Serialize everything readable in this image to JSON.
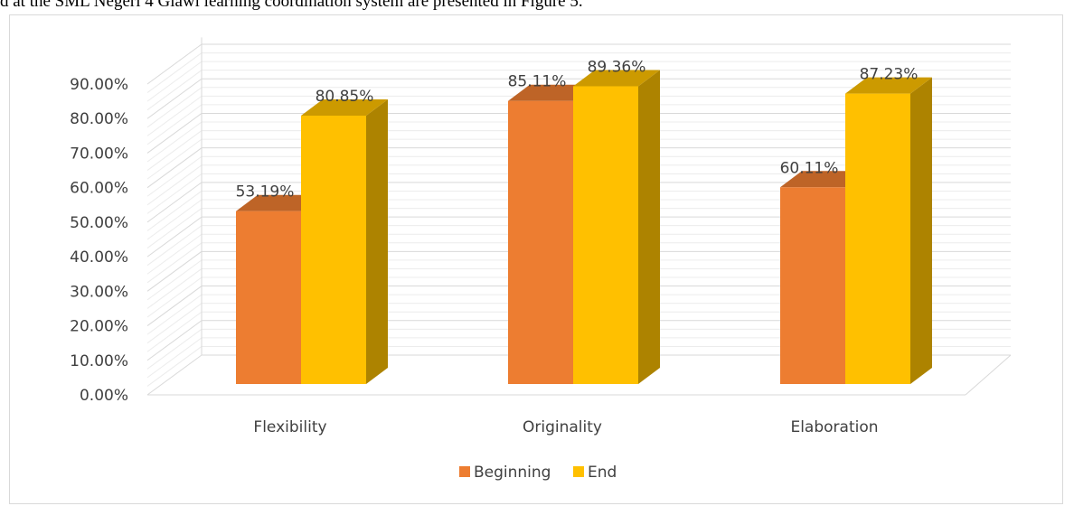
{
  "caption": "d at the SML Negeri 4 Giawi learning coordination system are presented in Figure 5.",
  "chart_data": {
    "type": "bar",
    "categories": [
      "Flexibility",
      "Originality",
      "Elaboration"
    ],
    "series": [
      {
        "name": "Beginning",
        "values": [
          53.19,
          85.11,
          60.11
        ],
        "labels": [
          "53.19%",
          "85.11%",
          "60.11%"
        ],
        "color": "#ED7D31"
      },
      {
        "name": "End",
        "values": [
          80.85,
          89.36,
          87.23
        ],
        "labels": [
          "80.85%",
          "89.36%",
          "87.23%"
        ],
        "color": "#FFC000"
      }
    ],
    "y_ticks": [
      "0.00%",
      "10.00%",
      "20.00%",
      "30.00%",
      "40.00%",
      "50.00%",
      "60.00%",
      "70.00%",
      "80.00%",
      "90.00%"
    ],
    "ylim": [
      0,
      90
    ],
    "grid": true,
    "legend_position": "bottom",
    "style": "3d-clustered-column"
  }
}
